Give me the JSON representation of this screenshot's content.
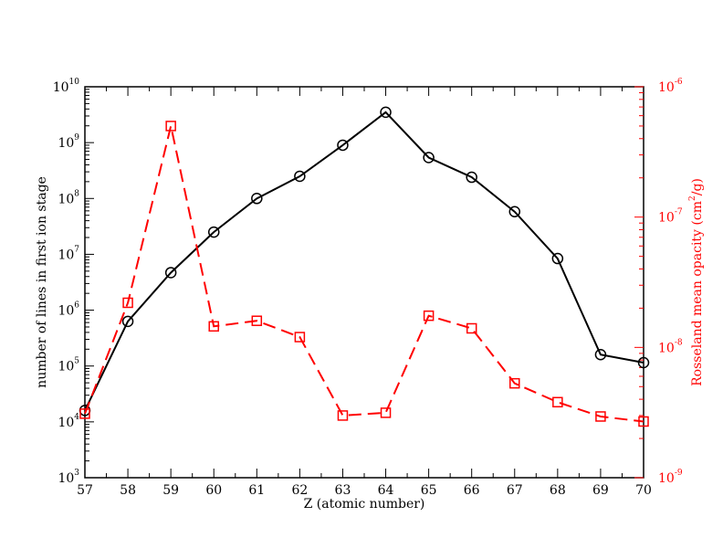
{
  "chart_data": {
    "type": "line",
    "xlabel": "Z (atomic number)",
    "ylabel_left": "number of lines in first ion stage",
    "ylabel_right": "Rosseland mean opacity (cm²/g)",
    "ylabel_right_parts": {
      "prefix": "Rosseland mean opacity (cm",
      "sup": "2",
      "suffix": "/g)"
    },
    "xlim": [
      57,
      70
    ],
    "y_left_lim": [
      1000,
      10000000000
    ],
    "y_left_scale": "log",
    "y_right_lim": [
      1e-09,
      1e-06
    ],
    "y_right_scale": "log",
    "x_ticks": [
      "57",
      "58",
      "59",
      "60",
      "61",
      "62",
      "63",
      "64",
      "65",
      "66",
      "67",
      "68",
      "69",
      "70"
    ],
    "y_left_ticks": [
      {
        "base": "10",
        "exp": "3"
      },
      {
        "base": "10",
        "exp": "4"
      },
      {
        "base": "10",
        "exp": "5"
      },
      {
        "base": "10",
        "exp": "6"
      },
      {
        "base": "10",
        "exp": "7"
      },
      {
        "base": "10",
        "exp": "8"
      },
      {
        "base": "10",
        "exp": "9"
      },
      {
        "base": "10",
        "exp": "10"
      }
    ],
    "y_right_ticks": [
      {
        "base": "10",
        "exp": "-9"
      },
      {
        "base": "10",
        "exp": "-8"
      },
      {
        "base": "10",
        "exp": "-7"
      },
      {
        "base": "10",
        "exp": "-6"
      }
    ],
    "series": [
      {
        "axis": "left",
        "color": "#000000",
        "line_style": "solid",
        "marker": "circle",
        "x": [
          57,
          58,
          59,
          60,
          61,
          62,
          63,
          64,
          65,
          66,
          67,
          68,
          69,
          70
        ],
        "values": [
          16000,
          630000,
          4700000,
          25000000,
          100000000,
          250000000,
          900000000,
          3500000000,
          540000000,
          240000000,
          58000000,
          8400000,
          160000,
          115000
        ]
      },
      {
        "axis": "right",
        "color": "#ff0000",
        "line_style": "dashed",
        "marker": "square",
        "x": [
          57,
          58,
          59,
          60,
          61,
          62,
          63,
          64,
          65,
          66,
          67,
          68,
          69,
          70
        ],
        "values": [
          3.1e-09,
          2.2e-08,
          5e-07,
          1.45e-08,
          1.6e-08,
          1.2e-08,
          3e-09,
          3.15e-09,
          1.75e-08,
          1.4e-08,
          5.3e-09,
          3.8e-09,
          2.95e-09,
          2.7e-09
        ]
      }
    ]
  }
}
